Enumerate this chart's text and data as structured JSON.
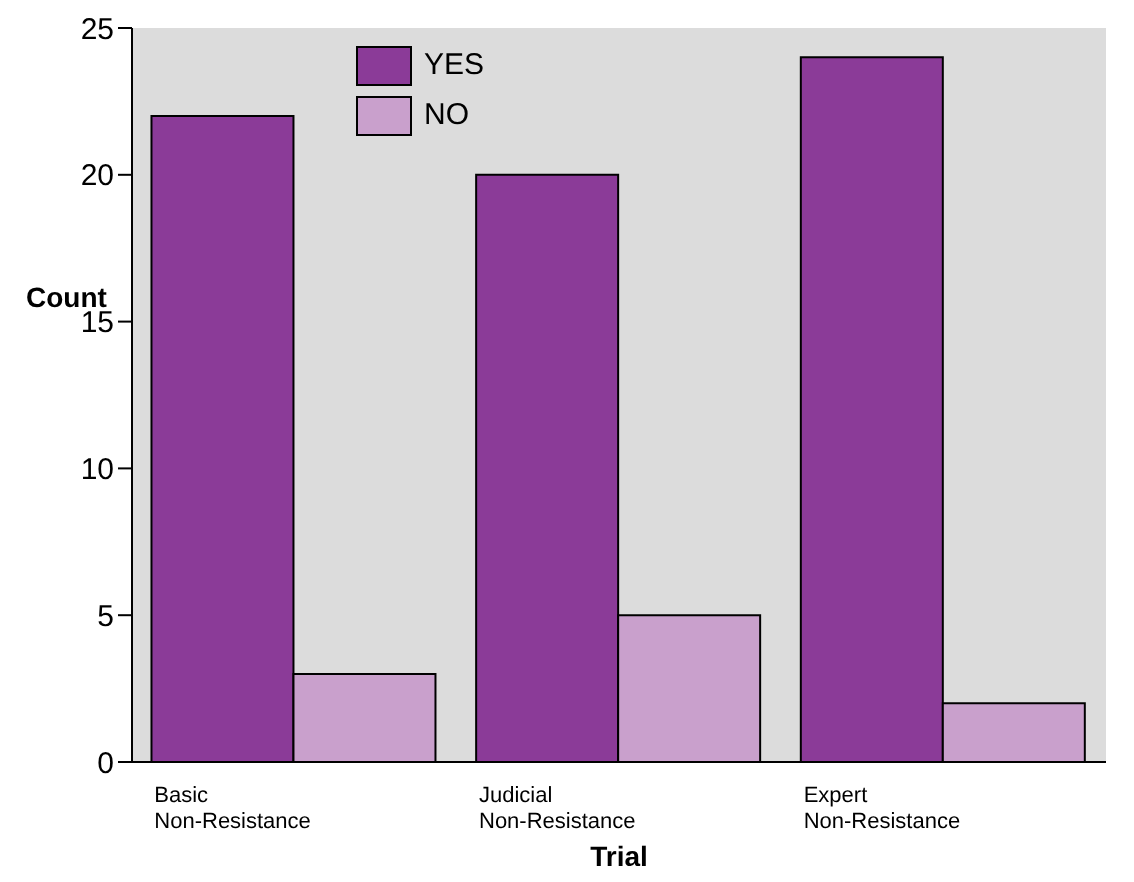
{
  "chart_data": {
    "type": "bar",
    "xlabel": "Trial",
    "ylabel": "Count",
    "categories": [
      "Basic Non-Resistance",
      "Judicial Non-Resistance",
      "Expert Non-Resistance"
    ],
    "series": [
      {
        "name": "YES",
        "color": "#8b3b98",
        "values": [
          22,
          20,
          24
        ]
      },
      {
        "name": "NO",
        "color": "#c9a0cc",
        "values": [
          3,
          5,
          2
        ]
      }
    ],
    "ylim": [
      0,
      25
    ],
    "yticks": [
      0,
      5,
      10,
      15,
      20,
      25
    ],
    "grid": false,
    "legend": "top left"
  }
}
